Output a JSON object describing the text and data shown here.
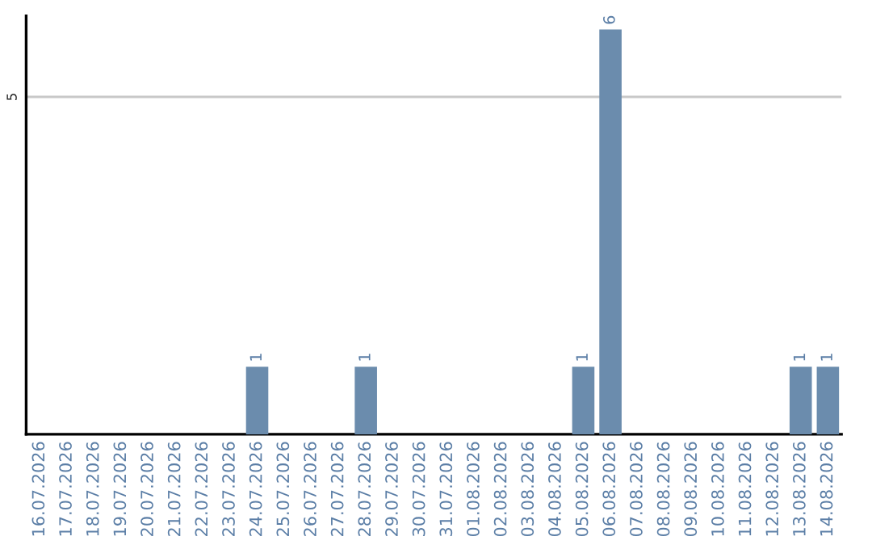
{
  "chart_data": {
    "type": "bar",
    "categories": [
      "16.07.2026",
      "17.07.2026",
      "18.07.2026",
      "19.07.2026",
      "20.07.2026",
      "21.07.2026",
      "22.07.2026",
      "23.07.2026",
      "24.07.2026",
      "25.07.2026",
      "26.07.2026",
      "27.07.2026",
      "28.07.2026",
      "29.07.2026",
      "30.07.2026",
      "31.07.2026",
      "01.08.2026",
      "02.08.2026",
      "03.08.2026",
      "04.08.2026",
      "05.08.2026",
      "06.08.2026",
      "07.08.2026",
      "08.08.2026",
      "09.08.2026",
      "10.08.2026",
      "11.08.2026",
      "12.08.2026",
      "13.08.2026",
      "14.08.2026"
    ],
    "values": [
      0,
      0,
      0,
      0,
      0,
      0,
      0,
      0,
      1,
      0,
      0,
      0,
      1,
      0,
      0,
      0,
      0,
      0,
      0,
      0,
      1,
      6,
      0,
      0,
      0,
      0,
      0,
      0,
      1,
      1
    ],
    "value_labels": [
      null,
      null,
      null,
      null,
      null,
      null,
      null,
      null,
      "1",
      null,
      null,
      null,
      "1",
      null,
      null,
      null,
      null,
      null,
      null,
      null,
      "1",
      "6",
      null,
      null,
      null,
      null,
      null,
      null,
      "1",
      "1"
    ],
    "color": "#6b8cad",
    "ylim": [
      0,
      6.2
    ],
    "yticks": [
      5
    ],
    "grid": "y",
    "legend": false
  }
}
